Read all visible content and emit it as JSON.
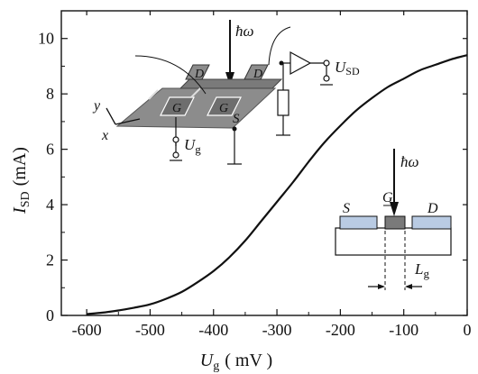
{
  "chart_data": {
    "type": "line",
    "xlabel": {
      "main": "U",
      "sub": "g",
      "unit": "( mV )"
    },
    "ylabel": {
      "main": "I",
      "sub": "SD",
      "unit": "(mA)"
    },
    "xlim": [
      -640,
      0
    ],
    "ylim": [
      0,
      11
    ],
    "x_ticks": [
      -600,
      -500,
      -400,
      -300,
      -200,
      -100,
      0
    ],
    "x_tick_labels": [
      "-600",
      "-500",
      "-400",
      "-300",
      "-200",
      "-100",
      "0"
    ],
    "y_ticks": [
      0,
      2,
      4,
      6,
      8,
      10
    ],
    "y_tick_labels": [
      "0",
      "2",
      "4",
      "6",
      "8",
      "10"
    ],
    "grid": false,
    "series": [
      {
        "x": [
          -600,
          -575,
          -550,
          -525,
          -500,
          -475,
          -450,
          -425,
          -400,
          -375,
          -350,
          -325,
          -300,
          -275,
          -250,
          -225,
          -200,
          -175,
          -150,
          -125,
          -100,
          -75,
          -50,
          -25,
          0
        ],
        "y": [
          0.05,
          0.1,
          0.18,
          0.28,
          0.4,
          0.6,
          0.85,
          1.2,
          1.6,
          2.1,
          2.7,
          3.4,
          4.1,
          4.8,
          5.55,
          6.25,
          6.85,
          7.4,
          7.85,
          8.25,
          8.55,
          8.85,
          9.05,
          9.25,
          9.4
        ]
      }
    ],
    "annotations": {
      "light_top": "ħω",
      "light_inset": "ħω",
      "out_main": "U",
      "out_sub": "SD",
      "gate_main": "U",
      "gate_sub": "g",
      "axis_y": "y",
      "axis_x": "x",
      "pad_d": "D",
      "pad_g": "G",
      "pad_s": "S",
      "inset_s": "S",
      "inset_g": "G",
      "inset_d": "D",
      "len_main": "L",
      "len_sub": "g"
    }
  },
  "colors": {
    "curve": "#111111",
    "device": "#8c8c8c",
    "device_dark": "#6e6e6e",
    "inset_pad": "#b9cbe3",
    "inset_gate": "#7a7a7a"
  }
}
